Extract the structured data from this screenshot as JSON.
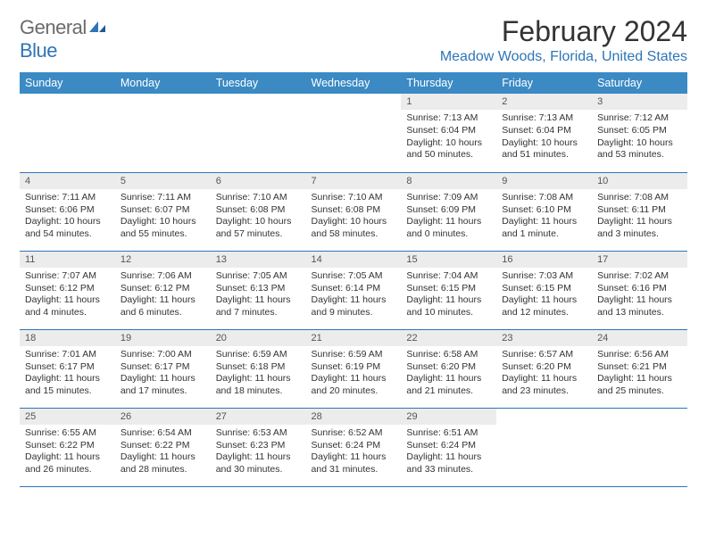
{
  "logo": {
    "general": "General",
    "blue": "Blue"
  },
  "title": "February 2024",
  "location": "Meadow Woods, Florida, United States",
  "colors": {
    "header_bg": "#3b8ac4",
    "header_text": "#ffffff",
    "accent": "#2e75b6",
    "daynum_bg": "#ececec",
    "text": "#333333",
    "logo_gray": "#6b6b6b"
  },
  "day_headers": [
    "Sunday",
    "Monday",
    "Tuesday",
    "Wednesday",
    "Thursday",
    "Friday",
    "Saturday"
  ],
  "weeks": [
    [
      {
        "n": "",
        "lines": []
      },
      {
        "n": "",
        "lines": []
      },
      {
        "n": "",
        "lines": []
      },
      {
        "n": "",
        "lines": []
      },
      {
        "n": "1",
        "lines": [
          "Sunrise: 7:13 AM",
          "Sunset: 6:04 PM",
          "Daylight: 10 hours and 50 minutes."
        ]
      },
      {
        "n": "2",
        "lines": [
          "Sunrise: 7:13 AM",
          "Sunset: 6:04 PM",
          "Daylight: 10 hours and 51 minutes."
        ]
      },
      {
        "n": "3",
        "lines": [
          "Sunrise: 7:12 AM",
          "Sunset: 6:05 PM",
          "Daylight: 10 hours and 53 minutes."
        ]
      }
    ],
    [
      {
        "n": "4",
        "lines": [
          "Sunrise: 7:11 AM",
          "Sunset: 6:06 PM",
          "Daylight: 10 hours and 54 minutes."
        ]
      },
      {
        "n": "5",
        "lines": [
          "Sunrise: 7:11 AM",
          "Sunset: 6:07 PM",
          "Daylight: 10 hours and 55 minutes."
        ]
      },
      {
        "n": "6",
        "lines": [
          "Sunrise: 7:10 AM",
          "Sunset: 6:08 PM",
          "Daylight: 10 hours and 57 minutes."
        ]
      },
      {
        "n": "7",
        "lines": [
          "Sunrise: 7:10 AM",
          "Sunset: 6:08 PM",
          "Daylight: 10 hours and 58 minutes."
        ]
      },
      {
        "n": "8",
        "lines": [
          "Sunrise: 7:09 AM",
          "Sunset: 6:09 PM",
          "Daylight: 11 hours and 0 minutes."
        ]
      },
      {
        "n": "9",
        "lines": [
          "Sunrise: 7:08 AM",
          "Sunset: 6:10 PM",
          "Daylight: 11 hours and 1 minute."
        ]
      },
      {
        "n": "10",
        "lines": [
          "Sunrise: 7:08 AM",
          "Sunset: 6:11 PM",
          "Daylight: 11 hours and 3 minutes."
        ]
      }
    ],
    [
      {
        "n": "11",
        "lines": [
          "Sunrise: 7:07 AM",
          "Sunset: 6:12 PM",
          "Daylight: 11 hours and 4 minutes."
        ]
      },
      {
        "n": "12",
        "lines": [
          "Sunrise: 7:06 AM",
          "Sunset: 6:12 PM",
          "Daylight: 11 hours and 6 minutes."
        ]
      },
      {
        "n": "13",
        "lines": [
          "Sunrise: 7:05 AM",
          "Sunset: 6:13 PM",
          "Daylight: 11 hours and 7 minutes."
        ]
      },
      {
        "n": "14",
        "lines": [
          "Sunrise: 7:05 AM",
          "Sunset: 6:14 PM",
          "Daylight: 11 hours and 9 minutes."
        ]
      },
      {
        "n": "15",
        "lines": [
          "Sunrise: 7:04 AM",
          "Sunset: 6:15 PM",
          "Daylight: 11 hours and 10 minutes."
        ]
      },
      {
        "n": "16",
        "lines": [
          "Sunrise: 7:03 AM",
          "Sunset: 6:15 PM",
          "Daylight: 11 hours and 12 minutes."
        ]
      },
      {
        "n": "17",
        "lines": [
          "Sunrise: 7:02 AM",
          "Sunset: 6:16 PM",
          "Daylight: 11 hours and 13 minutes."
        ]
      }
    ],
    [
      {
        "n": "18",
        "lines": [
          "Sunrise: 7:01 AM",
          "Sunset: 6:17 PM",
          "Daylight: 11 hours and 15 minutes."
        ]
      },
      {
        "n": "19",
        "lines": [
          "Sunrise: 7:00 AM",
          "Sunset: 6:17 PM",
          "Daylight: 11 hours and 17 minutes."
        ]
      },
      {
        "n": "20",
        "lines": [
          "Sunrise: 6:59 AM",
          "Sunset: 6:18 PM",
          "Daylight: 11 hours and 18 minutes."
        ]
      },
      {
        "n": "21",
        "lines": [
          "Sunrise: 6:59 AM",
          "Sunset: 6:19 PM",
          "Daylight: 11 hours and 20 minutes."
        ]
      },
      {
        "n": "22",
        "lines": [
          "Sunrise: 6:58 AM",
          "Sunset: 6:20 PM",
          "Daylight: 11 hours and 21 minutes."
        ]
      },
      {
        "n": "23",
        "lines": [
          "Sunrise: 6:57 AM",
          "Sunset: 6:20 PM",
          "Daylight: 11 hours and 23 minutes."
        ]
      },
      {
        "n": "24",
        "lines": [
          "Sunrise: 6:56 AM",
          "Sunset: 6:21 PM",
          "Daylight: 11 hours and 25 minutes."
        ]
      }
    ],
    [
      {
        "n": "25",
        "lines": [
          "Sunrise: 6:55 AM",
          "Sunset: 6:22 PM",
          "Daylight: 11 hours and 26 minutes."
        ]
      },
      {
        "n": "26",
        "lines": [
          "Sunrise: 6:54 AM",
          "Sunset: 6:22 PM",
          "Daylight: 11 hours and 28 minutes."
        ]
      },
      {
        "n": "27",
        "lines": [
          "Sunrise: 6:53 AM",
          "Sunset: 6:23 PM",
          "Daylight: 11 hours and 30 minutes."
        ]
      },
      {
        "n": "28",
        "lines": [
          "Sunrise: 6:52 AM",
          "Sunset: 6:24 PM",
          "Daylight: 11 hours and 31 minutes."
        ]
      },
      {
        "n": "29",
        "lines": [
          "Sunrise: 6:51 AM",
          "Sunset: 6:24 PM",
          "Daylight: 11 hours and 33 minutes."
        ]
      },
      {
        "n": "",
        "lines": []
      },
      {
        "n": "",
        "lines": []
      }
    ]
  ]
}
